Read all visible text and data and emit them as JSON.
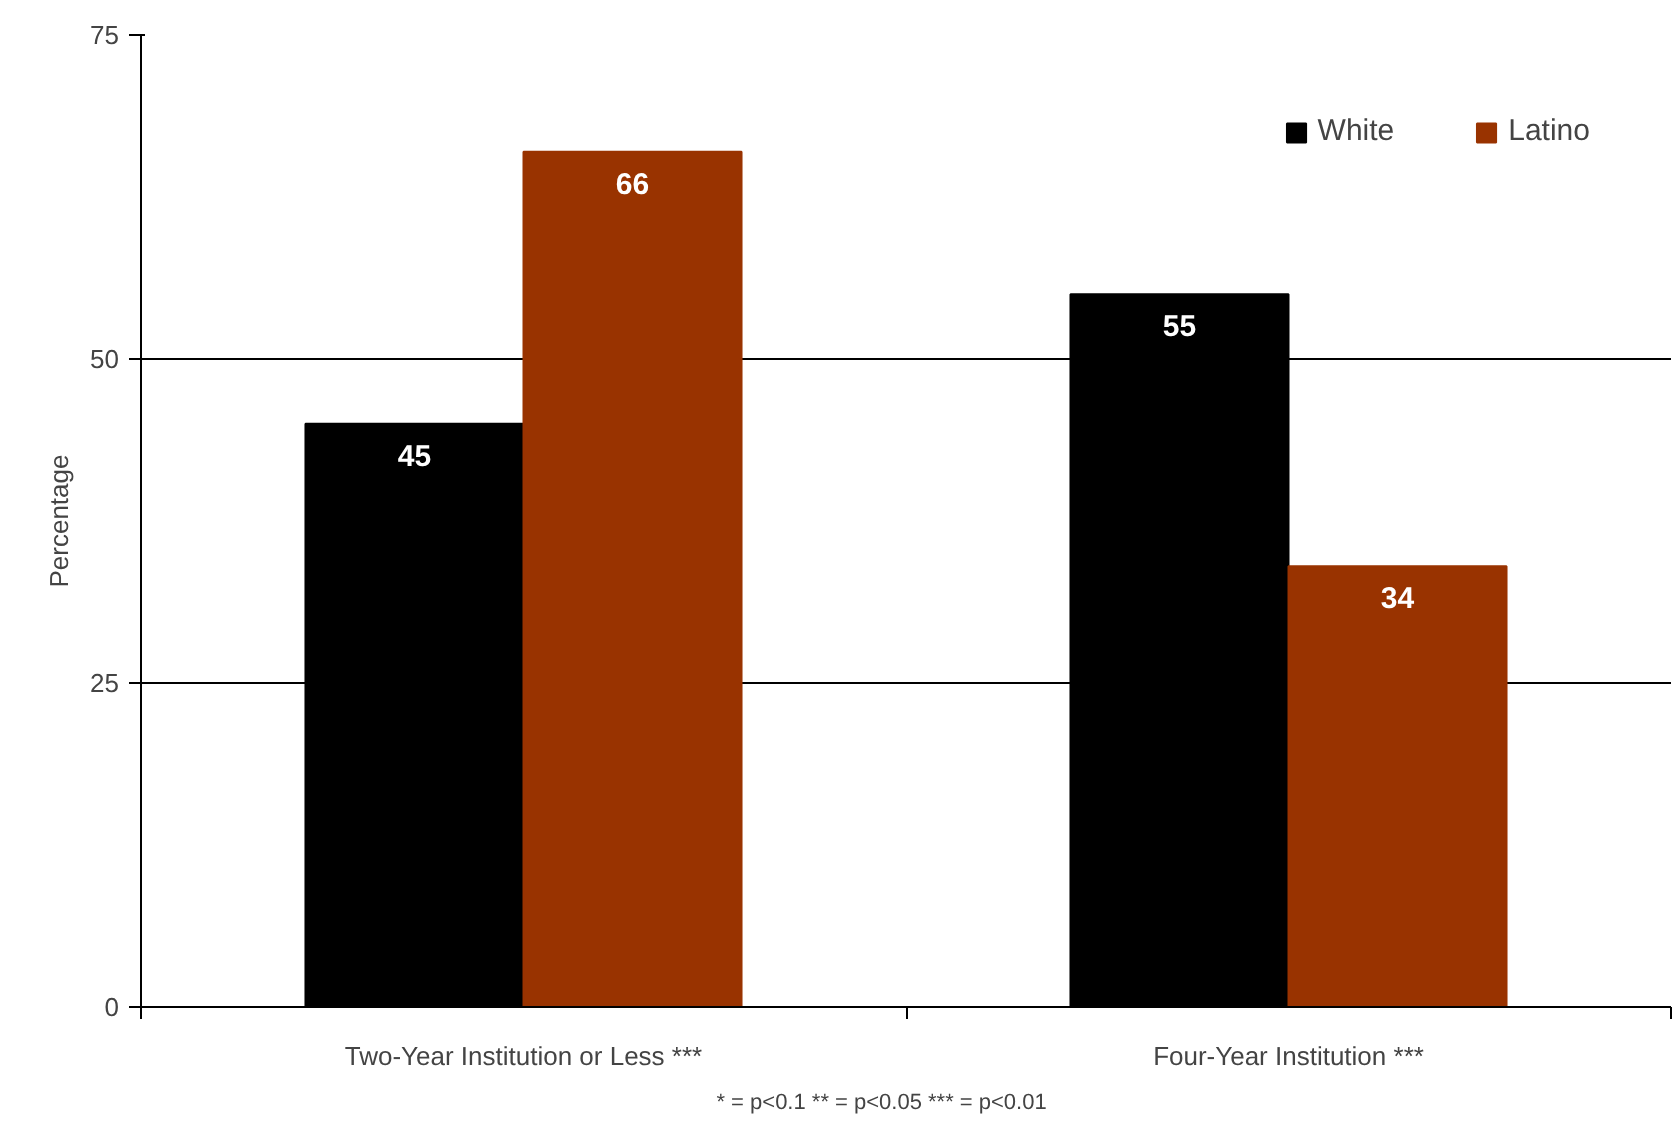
{
  "chart_data": {
    "type": "bar",
    "ylabel": "Percentage",
    "categories": [
      "Two-Year Institution or Less ***",
      "Four-Year Institution ***"
    ],
    "series": [
      {
        "name": "White",
        "color": "#000000",
        "values": [
          45,
          55
        ]
      },
      {
        "name": "Latino",
        "color": "#993300",
        "values": [
          66,
          34
        ]
      }
    ],
    "ylim": [
      0,
      75
    ],
    "yticks": [
      0,
      25,
      50,
      75
    ],
    "grid": "y",
    "legend": "top right",
    "data_labels": true,
    "annotations": [
      "* = p<0.1     ** = p<0.05     *** = p<0.01"
    ]
  }
}
